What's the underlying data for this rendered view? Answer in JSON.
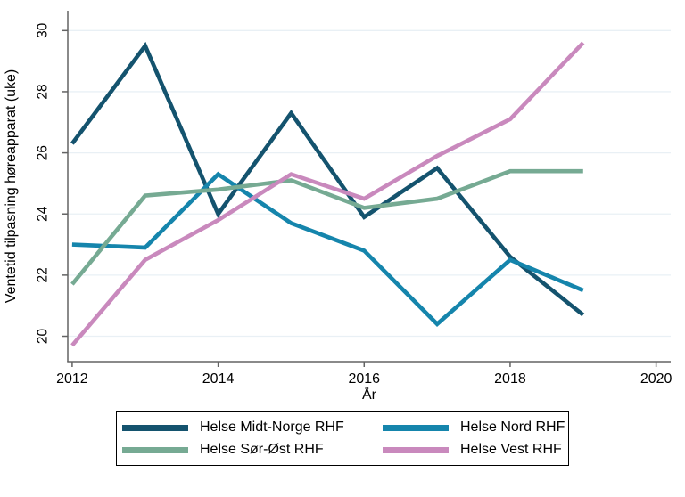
{
  "chart_data": {
    "type": "line",
    "x": [
      2012,
      2013,
      2014,
      2015,
      2016,
      2017,
      2018,
      2019
    ],
    "series": [
      {
        "name": "Helse Midt-Norge RHF",
        "color": "#14536e",
        "values": [
          26.3,
          29.5,
          24.0,
          27.3,
          23.9,
          25.5,
          22.6,
          20.7
        ]
      },
      {
        "name": "Helse Nord RHF",
        "color": "#1585ac",
        "values": [
          23.0,
          22.9,
          25.3,
          23.7,
          22.8,
          20.4,
          22.5,
          21.5
        ]
      },
      {
        "name": "Helse Sør-Øst RHF",
        "color": "#76aa93",
        "values": [
          21.7,
          24.6,
          24.8,
          25.1,
          24.2,
          24.5,
          25.4,
          25.4
        ]
      },
      {
        "name": "Helse Vest RHF",
        "color": "#c989bd",
        "values": [
          19.7,
          22.5,
          23.8,
          25.3,
          24.5,
          25.9,
          27.1,
          29.6
        ]
      }
    ],
    "title": "",
    "xlabel": "År",
    "ylabel": "Ventetid tilpasning høreapparat (uke)",
    "xticks": [
      2012,
      2014,
      2016,
      2018,
      2020
    ],
    "yticks": [
      20,
      22,
      24,
      26,
      28,
      30
    ],
    "xlim": [
      2011.94,
      2020.2
    ],
    "ylim": [
      19.17,
      30.65
    ],
    "grid": "horizontal-only",
    "grid_color": "#e9f0f5",
    "axis_color": "#636363",
    "text_color": "#000000",
    "legend_position": "bottom",
    "ytick_label_rotation": -90
  }
}
